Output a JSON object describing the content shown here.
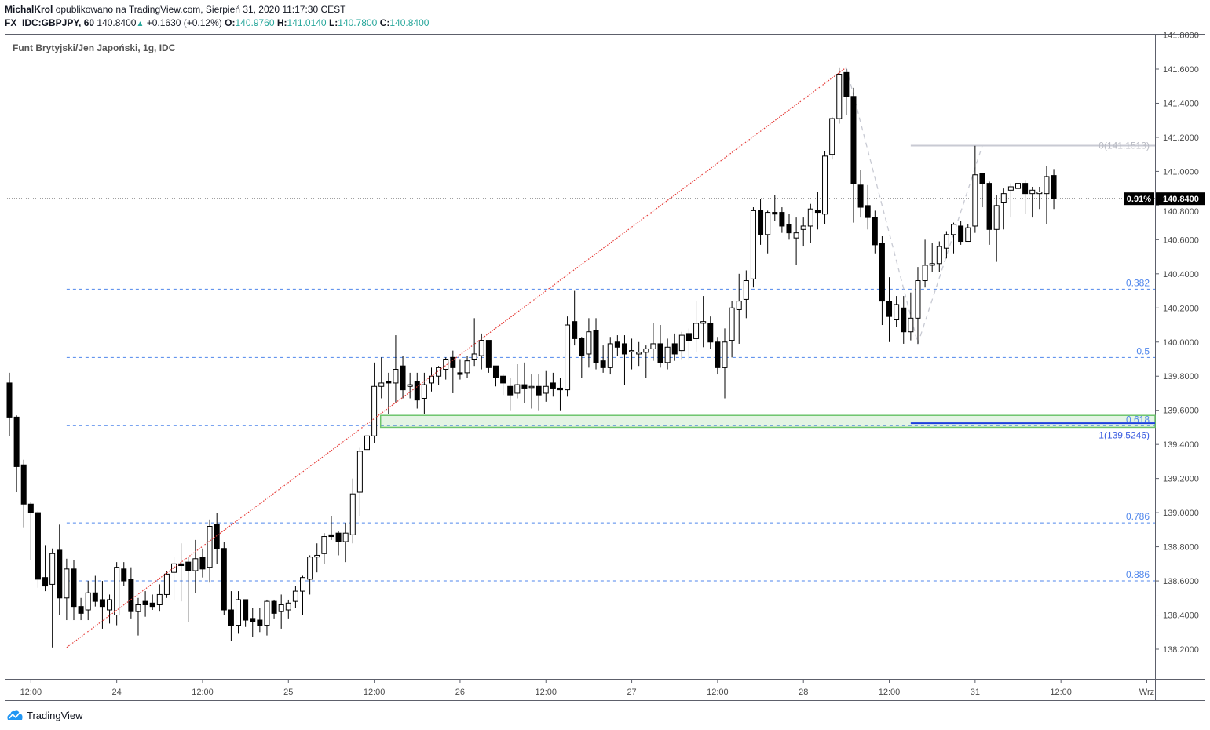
{
  "header": {
    "author": "MichalKrol",
    "published": "opublikowano na TradingView.com, Sierpień 31, 2020 11:17:30 CEST",
    "symbol": "FX_IDC:GBPJPY, 60",
    "last": "140.8400",
    "change": "+0.1630 (+0.12%)",
    "o_label": "O:",
    "o": "140.9760",
    "h_label": "H:",
    "h": "141.0140",
    "l_label": "L:",
    "l": "140.7800",
    "c_label": "C:",
    "c": "140.8400"
  },
  "footer": {
    "brand": "TradingView"
  },
  "colors": {
    "teal": "#26a69a",
    "fib": "#4f86ec",
    "trend": "#e53935",
    "zone": "#6cc46c",
    "bull": "#ffffff",
    "bear": "#000000"
  },
  "chart_data": {
    "type": "candlestick",
    "title": "Funt Brytyjski/Jen Japoński, 1g, IDC",
    "ylim": [
      138.0,
      141.8
    ],
    "y_ticks": [
      "141.8000",
      "141.6000",
      "141.4000",
      "141.2000",
      "141.0000",
      "140.8000",
      "140.6000",
      "140.4000",
      "140.2000",
      "140.0000",
      "139.8000",
      "139.6000",
      "139.4000",
      "139.2000",
      "139.0000",
      "138.8000",
      "138.6000",
      "138.4000",
      "138.2000"
    ],
    "x_ticks": [
      {
        "label": "12:00",
        "index": 3
      },
      {
        "label": "24",
        "index": 15
      },
      {
        "label": "12:00",
        "index": 27
      },
      {
        "label": "25",
        "index": 39
      },
      {
        "label": "12:00",
        "index": 51
      },
      {
        "label": "26",
        "index": 63
      },
      {
        "label": "12:00",
        "index": 75
      },
      {
        "label": "27",
        "index": 87
      },
      {
        "label": "12:00",
        "index": 99
      },
      {
        "label": "28",
        "index": 111
      },
      {
        "label": "12:00",
        "index": 123
      },
      {
        "label": "31",
        "index": 135
      },
      {
        "label": "12:00",
        "index": 147
      },
      {
        "label": "Wrz",
        "index": 159
      }
    ],
    "current_price": {
      "value": 140.84,
      "label": "140.8400",
      "percent_label": "0.91%"
    },
    "ohlc": [
      [
        139.76,
        139.82,
        139.45,
        139.56
      ],
      [
        139.56,
        139.57,
        139.12,
        139.27
      ],
      [
        139.28,
        139.31,
        138.91,
        139.05
      ],
      [
        139.05,
        139.06,
        138.72,
        139.0
      ],
      [
        139.0,
        139.01,
        138.56,
        138.61
      ],
      [
        138.62,
        138.81,
        138.54,
        138.57
      ],
      [
        138.58,
        138.79,
        138.21,
        138.76
      ],
      [
        138.78,
        138.93,
        138.4,
        138.5
      ],
      [
        138.5,
        138.73,
        138.37,
        138.67
      ],
      [
        138.67,
        138.72,
        138.37,
        138.45
      ],
      [
        138.45,
        138.5,
        138.37,
        138.41
      ],
      [
        138.43,
        138.6,
        138.37,
        138.53
      ],
      [
        138.53,
        138.63,
        138.45,
        138.48
      ],
      [
        138.49,
        138.6,
        138.32,
        138.45
      ],
      [
        138.43,
        138.52,
        138.35,
        138.49
      ],
      [
        138.4,
        138.71,
        138.34,
        138.68
      ],
      [
        138.67,
        138.71,
        138.57,
        138.6
      ],
      [
        138.61,
        138.68,
        138.38,
        138.42
      ],
      [
        138.42,
        138.5,
        138.28,
        138.46
      ],
      [
        138.48,
        138.54,
        138.39,
        138.46
      ],
      [
        138.47,
        138.52,
        138.43,
        138.45
      ],
      [
        138.46,
        138.58,
        138.42,
        138.52
      ],
      [
        138.52,
        138.66,
        138.5,
        138.64
      ],
      [
        138.65,
        138.74,
        138.49,
        138.7
      ],
      [
        138.7,
        138.82,
        138.48,
        138.69
      ],
      [
        138.71,
        138.74,
        138.36,
        138.66
      ],
      [
        138.66,
        138.84,
        138.53,
        138.73
      ],
      [
        138.74,
        138.79,
        138.62,
        138.67
      ],
      [
        138.68,
        138.96,
        138.59,
        138.92
      ],
      [
        138.93,
        139.0,
        138.7,
        138.79
      ],
      [
        138.79,
        138.83,
        138.4,
        138.43
      ],
      [
        138.43,
        138.54,
        138.25,
        138.34
      ],
      [
        138.34,
        138.54,
        138.29,
        138.49
      ],
      [
        138.49,
        138.49,
        138.33,
        138.37
      ],
      [
        138.38,
        138.44,
        138.27,
        138.36
      ],
      [
        138.37,
        138.44,
        138.3,
        138.34
      ],
      [
        138.34,
        138.49,
        138.28,
        138.48
      ],
      [
        138.48,
        138.49,
        138.38,
        138.41
      ],
      [
        138.42,
        138.52,
        138.32,
        138.46
      ],
      [
        138.43,
        138.49,
        138.38,
        138.47
      ],
      [
        138.48,
        138.57,
        138.44,
        138.54
      ],
      [
        138.54,
        138.63,
        138.4,
        138.62
      ],
      [
        138.61,
        138.75,
        138.52,
        138.74
      ],
      [
        138.74,
        138.82,
        138.65,
        138.75
      ],
      [
        138.76,
        138.88,
        138.7,
        138.86
      ],
      [
        138.87,
        138.98,
        138.84,
        138.86
      ],
      [
        138.88,
        138.89,
        138.75,
        138.83
      ],
      [
        138.83,
        138.94,
        138.71,
        138.88
      ],
      [
        138.87,
        139.2,
        138.82,
        139.11
      ],
      [
        139.12,
        139.38,
        138.98,
        139.36
      ],
      [
        139.37,
        139.47,
        139.23,
        139.45
      ],
      [
        139.45,
        139.88,
        139.41,
        139.74
      ],
      [
        139.74,
        139.91,
        139.67,
        139.76
      ],
      [
        139.77,
        139.82,
        139.58,
        139.76
      ],
      [
        139.76,
        140.04,
        139.64,
        139.84
      ],
      [
        139.86,
        139.92,
        139.67,
        139.72
      ],
      [
        139.74,
        139.82,
        139.67,
        139.75
      ],
      [
        139.77,
        139.82,
        139.61,
        139.66
      ],
      [
        139.67,
        139.82,
        139.58,
        139.75
      ],
      [
        139.76,
        139.85,
        139.71,
        139.8
      ],
      [
        139.8,
        139.86,
        139.75,
        139.85
      ],
      [
        139.84,
        139.91,
        139.78,
        139.9
      ],
      [
        139.91,
        139.95,
        139.7,
        139.85
      ],
      [
        139.82,
        139.9,
        139.78,
        139.81
      ],
      [
        139.82,
        139.92,
        139.79,
        139.89
      ],
      [
        139.9,
        140.14,
        139.86,
        139.93
      ],
      [
        139.92,
        140.05,
        139.84,
        140.01
      ],
      [
        140.01,
        140.01,
        139.82,
        139.85
      ],
      [
        139.86,
        139.86,
        139.74,
        139.79
      ],
      [
        139.8,
        139.81,
        139.69,
        139.76
      ],
      [
        139.74,
        139.79,
        139.6,
        139.69
      ],
      [
        139.7,
        139.87,
        139.67,
        139.75
      ],
      [
        139.75,
        139.88,
        139.64,
        139.73
      ],
      [
        139.74,
        139.81,
        139.61,
        139.74
      ],
      [
        139.74,
        139.81,
        139.6,
        139.69
      ],
      [
        139.7,
        139.83,
        139.65,
        139.74
      ],
      [
        139.76,
        139.82,
        139.68,
        139.73
      ],
      [
        139.73,
        139.79,
        139.6,
        139.72
      ],
      [
        139.72,
        140.15,
        139.68,
        140.1
      ],
      [
        140.12,
        140.3,
        139.98,
        140.02
      ],
      [
        140.02,
        140.03,
        139.79,
        139.92
      ],
      [
        139.93,
        140.14,
        139.85,
        140.06
      ],
      [
        140.07,
        140.14,
        139.84,
        139.88
      ],
      [
        139.89,
        139.98,
        139.82,
        139.85
      ],
      [
        139.85,
        140.03,
        139.81,
        139.99
      ],
      [
        140.0,
        140.04,
        139.92,
        139.97
      ],
      [
        139.99,
        140.04,
        139.75,
        139.93
      ],
      [
        139.95,
        140.02,
        139.84,
        139.95
      ],
      [
        139.93,
        140.0,
        139.86,
        139.94
      ],
      [
        139.94,
        139.98,
        139.79,
        139.96
      ],
      [
        139.96,
        140.11,
        139.89,
        139.99
      ],
      [
        139.99,
        140.1,
        139.85,
        139.88
      ],
      [
        139.88,
        140.02,
        139.84,
        139.97
      ],
      [
        139.99,
        140.05,
        139.89,
        139.93
      ],
      [
        139.95,
        140.06,
        139.9,
        140.04
      ],
      [
        140.05,
        140.08,
        139.9,
        140.01
      ],
      [
        140.02,
        140.24,
        139.94,
        140.11
      ],
      [
        140.11,
        140.27,
        139.97,
        140.12
      ],
      [
        140.11,
        140.15,
        139.96,
        140.0
      ],
      [
        140.0,
        140.03,
        139.81,
        139.85
      ],
      [
        139.85,
        140.08,
        139.67,
        140.0
      ],
      [
        140.01,
        140.24,
        139.91,
        140.2
      ],
      [
        140.19,
        140.4,
        139.99,
        140.24
      ],
      [
        140.25,
        140.42,
        140.14,
        140.36
      ],
      [
        140.37,
        140.79,
        140.32,
        140.77
      ],
      [
        140.77,
        140.84,
        140.57,
        140.63
      ],
      [
        140.63,
        140.77,
        140.52,
        140.76
      ],
      [
        140.76,
        140.86,
        140.71,
        140.75
      ],
      [
        140.76,
        140.79,
        140.64,
        140.68
      ],
      [
        140.69,
        140.75,
        140.6,
        140.64
      ],
      [
        140.61,
        140.73,
        140.45,
        140.64
      ],
      [
        140.66,
        140.73,
        140.56,
        140.68
      ],
      [
        140.68,
        140.81,
        140.58,
        140.78
      ],
      [
        140.77,
        140.88,
        140.66,
        140.76
      ],
      [
        140.75,
        141.12,
        140.69,
        141.09
      ],
      [
        141.1,
        141.32,
        141.07,
        141.31
      ],
      [
        141.31,
        141.61,
        141.28,
        141.57
      ],
      [
        141.58,
        141.6,
        141.33,
        141.44
      ],
      [
        141.44,
        141.49,
        140.7,
        140.93
      ],
      [
        140.92,
        141.01,
        140.73,
        140.79
      ],
      [
        140.8,
        140.92,
        140.66,
        140.73
      ],
      [
        140.73,
        140.77,
        140.52,
        140.57
      ],
      [
        140.58,
        140.62,
        140.1,
        140.24
      ],
      [
        140.24,
        140.38,
        140.0,
        140.15
      ],
      [
        140.13,
        140.27,
        140.09,
        140.22
      ],
      [
        140.2,
        140.27,
        139.99,
        140.06
      ],
      [
        140.06,
        140.29,
        140.01,
        140.14
      ],
      [
        140.14,
        140.44,
        139.99,
        140.36
      ],
      [
        140.36,
        140.6,
        140.32,
        140.45
      ],
      [
        140.45,
        140.58,
        140.41,
        140.46
      ],
      [
        140.46,
        140.59,
        140.41,
        140.56
      ],
      [
        140.55,
        140.65,
        140.49,
        140.63
      ],
      [
        140.63,
        140.7,
        140.52,
        140.69
      ],
      [
        140.68,
        140.71,
        140.57,
        140.59
      ],
      [
        140.59,
        140.69,
        140.59,
        140.67
      ],
      [
        140.68,
        141.15,
        140.64,
        140.98
      ],
      [
        140.99,
        140.99,
        140.79,
        140.93
      ],
      [
        140.93,
        140.94,
        140.57,
        140.66
      ],
      [
        140.66,
        140.86,
        140.47,
        140.8
      ],
      [
        140.82,
        140.9,
        140.66,
        140.87
      ],
      [
        140.89,
        140.93,
        140.73,
        140.91
      ],
      [
        140.9,
        141.0,
        140.84,
        140.93
      ],
      [
        140.93,
        140.95,
        140.75,
        140.87
      ],
      [
        140.87,
        140.91,
        140.73,
        140.89
      ],
      [
        140.87,
        140.91,
        140.78,
        140.88
      ],
      [
        140.87,
        141.03,
        140.69,
        140.97
      ],
      [
        140.976,
        141.014,
        140.78,
        140.84
      ]
    ],
    "annotations": {
      "trendline": {
        "from": [
          8,
          138.21
        ],
        "to": [
          117,
          141.61
        ]
      },
      "fib_retracement": {
        "start_index": 8,
        "levels": [
          {
            "label": "0.382",
            "price": 140.31
          },
          {
            "label": "0.5",
            "price": 139.91
          },
          {
            "label": "0.618",
            "price": 139.51
          },
          {
            "label": "0.786",
            "price": 138.94
          },
          {
            "label": "0.886",
            "price": 138.6
          }
        ]
      },
      "zone": {
        "start_index": 52,
        "top": 139.57,
        "bottom": 139.5
      },
      "fib_extension": {
        "points": [
          [
            117,
            141.61
          ],
          [
            127,
            139.99
          ],
          [
            136,
            141.15
          ]
        ],
        "start_index": 126,
        "level0": {
          "label": "0(141.1513)",
          "price": 141.1513
        },
        "level1": {
          "label": "1(139.5246)",
          "price": 139.5246
        }
      }
    }
  }
}
